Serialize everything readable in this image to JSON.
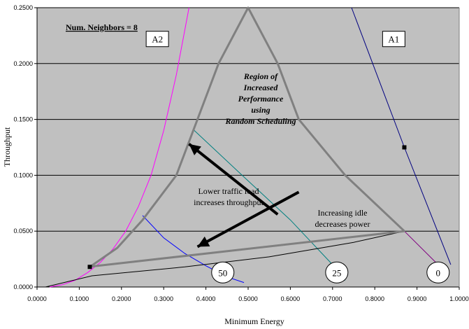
{
  "chart_data": {
    "type": "line",
    "title": "Num. Neighbors = 8",
    "xlabel": "Minimum Energy",
    "ylabel": "Throughput",
    "xlim": [
      0,
      1
    ],
    "ylim": [
      0,
      0.25
    ],
    "x_ticks": [
      "0.0000",
      "0.1000",
      "0.2000",
      "0.3000",
      "0.4000",
      "0.5000",
      "0.6000",
      "0.7000",
      "0.8000",
      "0.9000",
      "1.0000"
    ],
    "y_ticks": [
      "0.0000",
      "0.0500",
      "0.1000",
      "0.1500",
      "0.2000",
      "0.2500"
    ],
    "grid": true,
    "background": "#c0c0c0",
    "series": [
      {
        "name": "A2",
        "color": "#ff00ff",
        "points": [
          [
            0.03,
            0
          ],
          [
            0.06,
            0.002
          ],
          [
            0.09,
            0.006
          ],
          [
            0.12,
            0.013
          ],
          [
            0.15,
            0.022
          ],
          [
            0.18,
            0.034
          ],
          [
            0.21,
            0.05
          ],
          [
            0.24,
            0.072
          ],
          [
            0.27,
            0.1
          ],
          [
            0.3,
            0.14
          ],
          [
            0.33,
            0.19
          ],
          [
            0.35,
            0.23
          ],
          [
            0.36,
            0.25
          ]
        ]
      },
      {
        "name": "A1",
        "color": "#000080",
        "points": [
          [
            0.745,
            0.25
          ],
          [
            0.87,
            0.125
          ],
          [
            0.98,
            0.02
          ]
        ]
      },
      {
        "name": "",
        "color": "#0000ff",
        "points": [
          [
            0.25,
            0.064
          ],
          [
            0.3,
            0.044
          ],
          [
            0.35,
            0.03
          ],
          [
            0.4,
            0.019
          ],
          [
            0.45,
            0.009
          ],
          [
            0.49,
            0.004
          ]
        ]
      },
      {
        "name": "",
        "color": "#008080",
        "points": [
          [
            0.37,
            0.141
          ],
          [
            0.5,
            0.095
          ],
          [
            0.6,
            0.06
          ],
          [
            0.7,
            0.02
          ],
          [
            0.73,
            0.006
          ]
        ]
      },
      {
        "name": "",
        "color": "#000000",
        "points": [
          [
            0.02,
            0
          ],
          [
            0.13,
            0.01
          ],
          [
            0.35,
            0.018
          ],
          [
            0.55,
            0.027
          ],
          [
            0.75,
            0.04
          ],
          [
            0.87,
            0.05
          ]
        ]
      },
      {
        "name": "",
        "color": "#800080",
        "points": [
          [
            0.87,
            0.05
          ],
          [
            0.95,
            0.02
          ]
        ]
      }
    ],
    "region_boundary": {
      "color": "#808080",
      "points": [
        [
          0.125,
          0.018
        ],
        [
          0.19,
          0.035
        ],
        [
          0.25,
          0.06
        ],
        [
          0.33,
          0.1
        ],
        [
          0.38,
          0.15
        ],
        [
          0.43,
          0.2
        ],
        [
          0.5,
          0.25
        ],
        [
          0.57,
          0.2
        ],
        [
          0.62,
          0.15
        ],
        [
          0.73,
          0.1
        ],
        [
          0.87,
          0.05
        ],
        [
          0.12,
          0.018
        ]
      ]
    },
    "markers": [
      [
        0.125,
        0.018
      ],
      [
        0.87,
        0.125
      ]
    ],
    "labels_boxed": [
      {
        "text": "A2",
        "x": 0.285,
        "y": 0.222
      },
      {
        "text": "A1",
        "x": 0.845,
        "y": 0.222
      }
    ],
    "labels_circled": [
      {
        "text": "50",
        "x": 0.44,
        "y": 0.013
      },
      {
        "text": "25",
        "x": 0.71,
        "y": 0.013
      },
      {
        "text": "0",
        "x": 0.95,
        "y": 0.013
      }
    ],
    "annotations": {
      "region": [
        "Region of",
        "Increased",
        "Performance",
        "using",
        "Random Scheduling"
      ],
      "lower_traffic": [
        "Lower traffic load",
        "increases throughput"
      ],
      "increasing_idle": [
        "Increasing idle",
        "decreases power"
      ]
    },
    "arrows": [
      {
        "from": [
          0.57,
          0.065
        ],
        "to": [
          0.36,
          0.128
        ]
      },
      {
        "from": [
          0.62,
          0.085
        ],
        "to": [
          0.38,
          0.036
        ]
      }
    ]
  }
}
